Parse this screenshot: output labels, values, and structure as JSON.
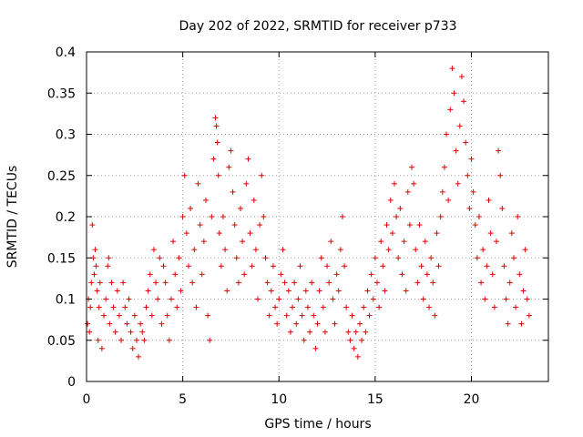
{
  "chart_data": {
    "type": "scatter",
    "title": "Day 202 of 2022, SRMTID for receiver p733",
    "xlabel": "GPS time / hours",
    "ylabel": "SRMTID / TECUs",
    "xlim": [
      0,
      24
    ],
    "ylim": [
      0,
      0.4
    ],
    "xticks": [
      0,
      5,
      10,
      15,
      20
    ],
    "yticks": [
      0,
      0.05,
      0.1,
      0.15,
      0.2,
      0.25,
      0.3,
      0.35,
      0.4
    ],
    "xtick_labels": [
      "0",
      "5",
      "10",
      "15",
      "20"
    ],
    "ytick_labels": [
      "0",
      "0.05",
      "0.1",
      "0.15",
      "0.2",
      "0.25",
      "0.3",
      "0.35",
      "0.4"
    ],
    "grid": true,
    "marker": "+",
    "color": "#e00000",
    "series": [
      {
        "name": "SRMTID",
        "points": [
          [
            0.05,
            0.07
          ],
          [
            0.1,
            0.1
          ],
          [
            0.15,
            0.06
          ],
          [
            0.2,
            0.09
          ],
          [
            0.25,
            0.12
          ],
          [
            0.3,
            0.19
          ],
          [
            0.35,
            0.15
          ],
          [
            0.4,
            0.13
          ],
          [
            0.45,
            0.16
          ],
          [
            0.5,
            0.14
          ],
          [
            0.55,
            0.11
          ],
          [
            0.6,
            0.05
          ],
          [
            0.65,
            0.09
          ],
          [
            0.7,
            0.12
          ],
          [
            0.8,
            0.04
          ],
          [
            0.9,
            0.08
          ],
          [
            1.0,
            0.1
          ],
          [
            1.1,
            0.14
          ],
          [
            1.15,
            0.15
          ],
          [
            1.2,
            0.07
          ],
          [
            1.3,
            0.12
          ],
          [
            1.4,
            0.09
          ],
          [
            1.5,
            0.06
          ],
          [
            1.6,
            0.11
          ],
          [
            1.7,
            0.08
          ],
          [
            1.8,
            0.05
          ],
          [
            1.9,
            0.12
          ],
          [
            2.0,
            0.09
          ],
          [
            2.1,
            0.07
          ],
          [
            2.2,
            0.1
          ],
          [
            2.3,
            0.06
          ],
          [
            2.4,
            0.04
          ],
          [
            2.5,
            0.08
          ],
          [
            2.6,
            0.05
          ],
          [
            2.7,
            0.03
          ],
          [
            2.8,
            0.07
          ],
          [
            2.9,
            0.06
          ],
          [
            3.0,
            0.05
          ],
          [
            3.1,
            0.09
          ],
          [
            3.2,
            0.11
          ],
          [
            3.3,
            0.13
          ],
          [
            3.4,
            0.08
          ],
          [
            3.5,
            0.16
          ],
          [
            3.6,
            0.12
          ],
          [
            3.7,
            0.1
          ],
          [
            3.8,
            0.15
          ],
          [
            3.9,
            0.07
          ],
          [
            4.0,
            0.14
          ],
          [
            4.1,
            0.12
          ],
          [
            4.2,
            0.08
          ],
          [
            4.3,
            0.05
          ],
          [
            4.4,
            0.1
          ],
          [
            4.5,
            0.17
          ],
          [
            4.6,
            0.13
          ],
          [
            4.7,
            0.09
          ],
          [
            4.8,
            0.15
          ],
          [
            4.9,
            0.11
          ],
          [
            5.0,
            0.2
          ],
          [
            5.1,
            0.25
          ],
          [
            5.2,
            0.18
          ],
          [
            5.3,
            0.14
          ],
          [
            5.4,
            0.21
          ],
          [
            5.5,
            0.12
          ],
          [
            5.6,
            0.16
          ],
          [
            5.7,
            0.09
          ],
          [
            5.8,
            0.24
          ],
          [
            5.9,
            0.19
          ],
          [
            6.0,
            0.13
          ],
          [
            6.1,
            0.17
          ],
          [
            6.2,
            0.22
          ],
          [
            6.3,
            0.08
          ],
          [
            6.4,
            0.05
          ],
          [
            6.5,
            0.2
          ],
          [
            6.6,
            0.27
          ],
          [
            6.7,
            0.32
          ],
          [
            6.75,
            0.31
          ],
          [
            6.8,
            0.29
          ],
          [
            6.85,
            0.25
          ],
          [
            6.9,
            0.18
          ],
          [
            7.0,
            0.14
          ],
          [
            7.1,
            0.2
          ],
          [
            7.2,
            0.16
          ],
          [
            7.3,
            0.11
          ],
          [
            7.4,
            0.26
          ],
          [
            7.5,
            0.28
          ],
          [
            7.6,
            0.23
          ],
          [
            7.7,
            0.19
          ],
          [
            7.8,
            0.15
          ],
          [
            7.9,
            0.12
          ],
          [
            8.0,
            0.21
          ],
          [
            8.1,
            0.17
          ],
          [
            8.2,
            0.13
          ],
          [
            8.3,
            0.24
          ],
          [
            8.4,
            0.27
          ],
          [
            8.5,
            0.18
          ],
          [
            8.6,
            0.14
          ],
          [
            8.7,
            0.22
          ],
          [
            8.8,
            0.16
          ],
          [
            8.9,
            0.1
          ],
          [
            9.0,
            0.19
          ],
          [
            9.1,
            0.25
          ],
          [
            9.2,
            0.2
          ],
          [
            9.3,
            0.15
          ],
          [
            9.4,
            0.12
          ],
          [
            9.5,
            0.08
          ],
          [
            9.6,
            0.11
          ],
          [
            9.7,
            0.14
          ],
          [
            9.8,
            0.09
          ],
          [
            9.9,
            0.07
          ],
          [
            10.0,
            0.1
          ],
          [
            10.1,
            0.13
          ],
          [
            10.2,
            0.16
          ],
          [
            10.3,
            0.12
          ],
          [
            10.4,
            0.08
          ],
          [
            10.5,
            0.11
          ],
          [
            10.6,
            0.06
          ],
          [
            10.7,
            0.09
          ],
          [
            10.8,
            0.12
          ],
          [
            10.9,
            0.07
          ],
          [
            11.0,
            0.1
          ],
          [
            11.1,
            0.14
          ],
          [
            11.2,
            0.08
          ],
          [
            11.3,
            0.05
          ],
          [
            11.4,
            0.11
          ],
          [
            11.5,
            0.09
          ],
          [
            11.6,
            0.06
          ],
          [
            11.7,
            0.12
          ],
          [
            11.8,
            0.08
          ],
          [
            11.9,
            0.04
          ],
          [
            12.0,
            0.07
          ],
          [
            12.1,
            0.11
          ],
          [
            12.2,
            0.15
          ],
          [
            12.3,
            0.09
          ],
          [
            12.4,
            0.06
          ],
          [
            12.5,
            0.14
          ],
          [
            12.6,
            0.12
          ],
          [
            12.7,
            0.17
          ],
          [
            12.8,
            0.1
          ],
          [
            12.9,
            0.07
          ],
          [
            13.0,
            0.13
          ],
          [
            13.1,
            0.11
          ],
          [
            13.2,
            0.16
          ],
          [
            13.3,
            0.2
          ],
          [
            13.4,
            0.14
          ],
          [
            13.5,
            0.09
          ],
          [
            13.6,
            0.06
          ],
          [
            13.7,
            0.05
          ],
          [
            13.8,
            0.08
          ],
          [
            13.9,
            0.04
          ],
          [
            14.0,
            0.06
          ],
          [
            14.1,
            0.03
          ],
          [
            14.2,
            0.07
          ],
          [
            14.3,
            0.05
          ],
          [
            14.4,
            0.09
          ],
          [
            14.5,
            0.06
          ],
          [
            14.6,
            0.11
          ],
          [
            14.7,
            0.08
          ],
          [
            14.8,
            0.13
          ],
          [
            14.9,
            0.1
          ],
          [
            15.0,
            0.15
          ],
          [
            15.1,
            0.12
          ],
          [
            15.2,
            0.09
          ],
          [
            15.3,
            0.17
          ],
          [
            15.4,
            0.14
          ],
          [
            15.5,
            0.11
          ],
          [
            15.6,
            0.19
          ],
          [
            15.7,
            0.16
          ],
          [
            15.8,
            0.22
          ],
          [
            15.9,
            0.18
          ],
          [
            16.0,
            0.24
          ],
          [
            16.1,
            0.2
          ],
          [
            16.2,
            0.15
          ],
          [
            16.3,
            0.21
          ],
          [
            16.4,
            0.13
          ],
          [
            16.5,
            0.17
          ],
          [
            16.6,
            0.11
          ],
          [
            16.7,
            0.23
          ],
          [
            16.8,
            0.19
          ],
          [
            16.9,
            0.26
          ],
          [
            17.0,
            0.24
          ],
          [
            17.1,
            0.16
          ],
          [
            17.2,
            0.12
          ],
          [
            17.3,
            0.19
          ],
          [
            17.4,
            0.14
          ],
          [
            17.5,
            0.1
          ],
          [
            17.6,
            0.17
          ],
          [
            17.7,
            0.13
          ],
          [
            17.8,
            0.09
          ],
          [
            17.9,
            0.15
          ],
          [
            18.0,
            0.12
          ],
          [
            18.1,
            0.08
          ],
          [
            18.2,
            0.18
          ],
          [
            18.3,
            0.14
          ],
          [
            18.4,
            0.2
          ],
          [
            18.5,
            0.23
          ],
          [
            18.6,
            0.26
          ],
          [
            18.7,
            0.3
          ],
          [
            18.8,
            0.22
          ],
          [
            18.9,
            0.33
          ],
          [
            19.0,
            0.38
          ],
          [
            19.1,
            0.35
          ],
          [
            19.2,
            0.28
          ],
          [
            19.3,
            0.24
          ],
          [
            19.4,
            0.31
          ],
          [
            19.5,
            0.37
          ],
          [
            19.6,
            0.34
          ],
          [
            19.7,
            0.29
          ],
          [
            19.8,
            0.25
          ],
          [
            19.9,
            0.21
          ],
          [
            20.0,
            0.27
          ],
          [
            20.1,
            0.23
          ],
          [
            20.2,
            0.19
          ],
          [
            20.3,
            0.15
          ],
          [
            20.4,
            0.2
          ],
          [
            20.5,
            0.12
          ],
          [
            20.6,
            0.16
          ],
          [
            20.7,
            0.1
          ],
          [
            20.8,
            0.14
          ],
          [
            20.9,
            0.22
          ],
          [
            21.0,
            0.18
          ],
          [
            21.1,
            0.13
          ],
          [
            21.2,
            0.09
          ],
          [
            21.3,
            0.17
          ],
          [
            21.4,
            0.28
          ],
          [
            21.5,
            0.25
          ],
          [
            21.6,
            0.21
          ],
          [
            21.7,
            0.14
          ],
          [
            21.8,
            0.1
          ],
          [
            21.9,
            0.07
          ],
          [
            22.0,
            0.12
          ],
          [
            22.1,
            0.18
          ],
          [
            22.2,
            0.15
          ],
          [
            22.3,
            0.09
          ],
          [
            22.4,
            0.2
          ],
          [
            22.5,
            0.13
          ],
          [
            22.6,
            0.07
          ],
          [
            22.7,
            0.11
          ],
          [
            22.8,
            0.16
          ],
          [
            22.9,
            0.1
          ],
          [
            23.0,
            0.08
          ]
        ]
      }
    ]
  }
}
